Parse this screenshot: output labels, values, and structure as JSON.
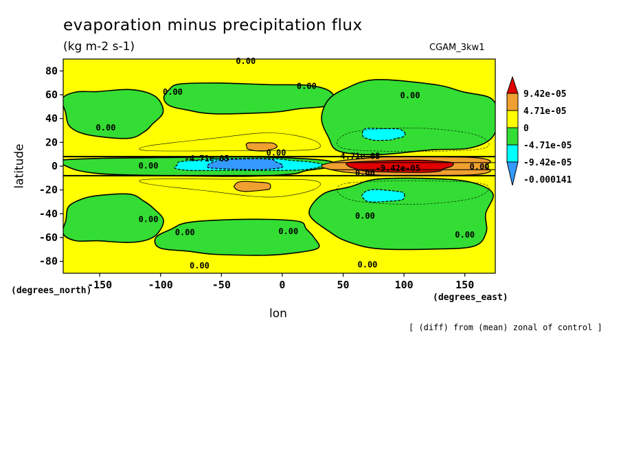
{
  "chart_data": {
    "type": "heatmap",
    "title": "evaporation minus precipitation flux",
    "units": "(kg m-2 s-1)",
    "dataset": "CGAM_3kw1",
    "xlabel": "lon",
    "ylabel": "latitude",
    "x_units": "(degrees_east)",
    "y_units": "(degrees_north)",
    "xlim": [
      -180,
      175
    ],
    "ylim": [
      -90,
      90
    ],
    "x_ticks": [
      -150,
      -100,
      -50,
      0,
      50,
      100,
      150
    ],
    "x_tick_labels": [
      "-150",
      "-100",
      "-50",
      "0",
      "50",
      "100",
      "150"
    ],
    "y_ticks": [
      -80,
      -60,
      -40,
      -20,
      0,
      20,
      40,
      60,
      80
    ],
    "y_tick_labels": [
      "-80",
      "-60",
      "-40",
      "-20",
      "0",
      "20",
      "40",
      "60",
      "80"
    ],
    "footnote": "[ (diff) from (mean) zonal of control ]",
    "colorbar": {
      "labels": [
        "9.42e-05",
        "4.71e-05",
        "0",
        "-4.71e-05",
        "-9.42e-05",
        "-0.000141"
      ],
      "levels": [
        9.42e-05,
        4.71e-05,
        0,
        -4.71e-05,
        -9.42e-05,
        -0.000141
      ],
      "colors": [
        "#e00000",
        "#f0a030",
        "#ffff00",
        "#33dd33",
        "#00ffff",
        "#3399ff"
      ]
    },
    "contour_labels": [
      "0.00",
      "-4.71e-05",
      "-9.42e-05"
    ],
    "regions": [
      {
        "level": "negative",
        "lon": [
          -180,
          -100
        ],
        "lat": [
          25,
          65
        ]
      },
      {
        "level": "negative",
        "lon": [
          -100,
          40
        ],
        "lat": [
          45,
          70
        ]
      },
      {
        "level": "negative",
        "lon": [
          30,
          175
        ],
        "lat": [
          10,
          70
        ]
      },
      {
        "level": "negative",
        "lon": [
          -180,
          -100
        ],
        "lat": [
          -65,
          -25
        ]
      },
      {
        "level": "negative",
        "lon": [
          -100,
          30
        ],
        "lat": [
          -75,
          -45
        ]
      },
      {
        "level": "negative",
        "lon": [
          30,
          175
        ],
        "lat": [
          -70,
          -10
        ]
      },
      {
        "level": "negative",
        "lon": [
          -180,
          40
        ],
        "lat": [
          -8,
          8
        ]
      },
      {
        "level": "strong_negative",
        "lon": [
          65,
          100
        ],
        "lat": [
          22,
          32
        ]
      },
      {
        "level": "strong_negative",
        "lon": [
          65,
          100
        ],
        "lat": [
          -30,
          -20
        ]
      },
      {
        "level": "strong_negative",
        "lon": [
          -90,
          30
        ],
        "lat": [
          -4,
          6
        ]
      },
      {
        "level": "very_strong_negative",
        "lon": [
          -60,
          0
        ],
        "lat": [
          -3,
          6
        ]
      },
      {
        "level": "positive",
        "lon": [
          40,
          175
        ],
        "lat": [
          -8,
          8
        ]
      },
      {
        "level": "strong_positive",
        "lon": [
          55,
          140
        ],
        "lat": [
          -5,
          5
        ]
      },
      {
        "level": "positive",
        "lon": [
          -30,
          -5
        ],
        "lat": [
          13,
          20
        ]
      },
      {
        "level": "positive",
        "lon": [
          -40,
          -10
        ],
        "lat": [
          -21,
          -13
        ]
      }
    ]
  }
}
